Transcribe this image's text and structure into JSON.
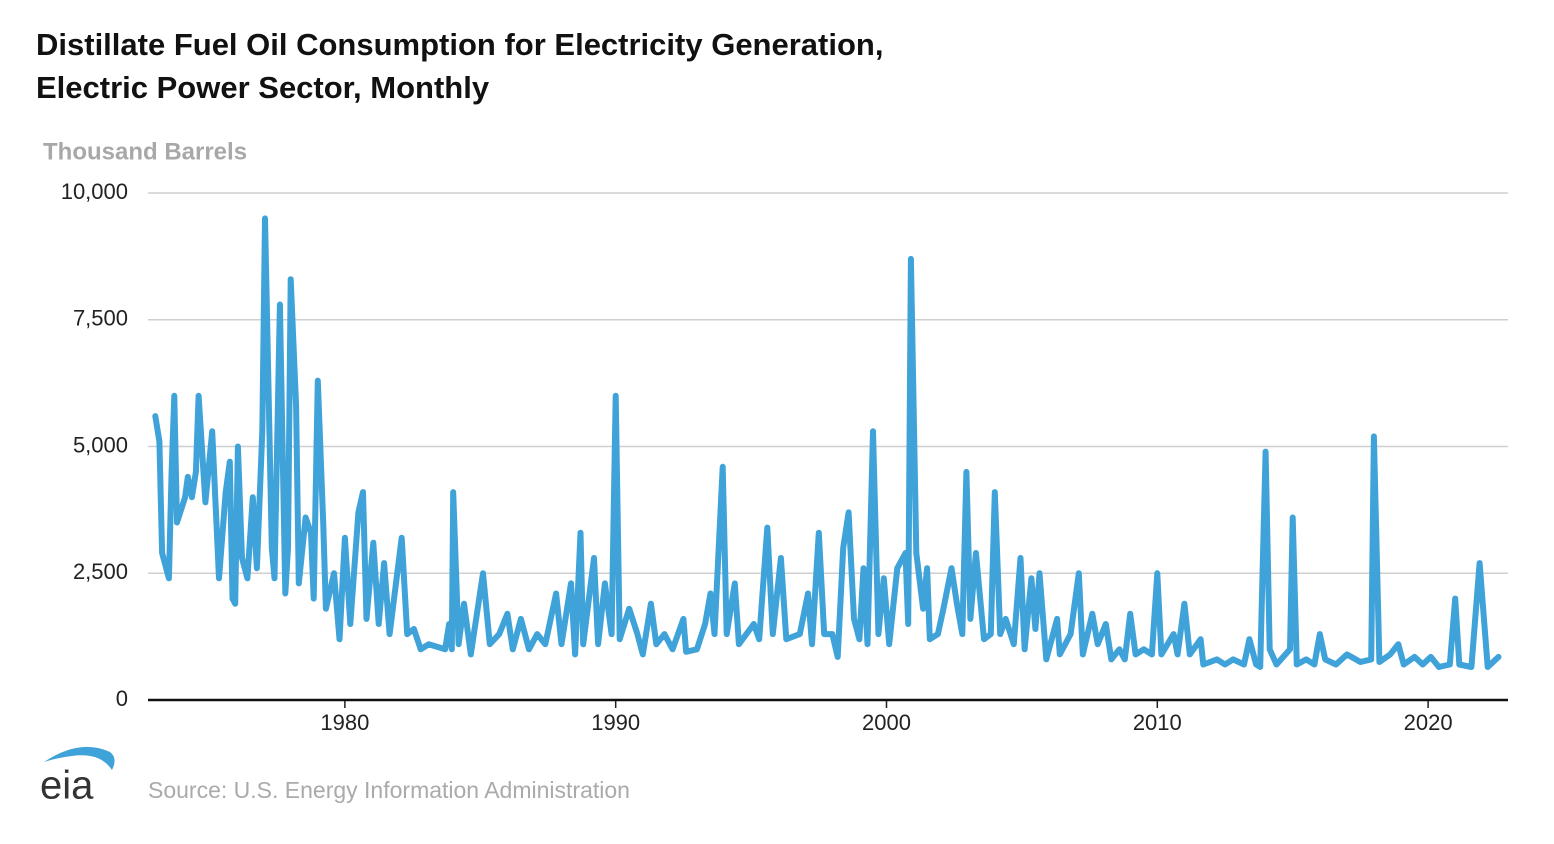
{
  "chart_data": {
    "type": "line",
    "title": [
      "Distillate Fuel Oil Consumption for Electricity Generation,",
      "Electric Power Sector, Monthly"
    ],
    "y_label": "Thousand Barrels",
    "source": "Source: U.S. Energy Information Administration",
    "color": "#3fa3d9",
    "grid": true,
    "xlim": [
      1972.73,
      2022.95
    ],
    "xticks": [
      1980,
      1990,
      2000,
      2010,
      2020
    ],
    "ylim": [
      0,
      10000
    ],
    "yticks": [
      0,
      {
        "value": 2500,
        "label": "2,500"
      },
      {
        "value": 5000,
        "label": "5,000"
      },
      {
        "value": 7500,
        "label": "7,500"
      },
      {
        "value": 10000,
        "label": "10,000"
      }
    ],
    "x": [
      1973.0,
      1973.15,
      1973.25,
      1973.5,
      1973.6,
      1973.7,
      1973.8,
      1974.1,
      1974.2,
      1974.35,
      1974.5,
      1974.6,
      1974.85,
      1975.1,
      1975.35,
      1975.6,
      1975.75,
      1975.85,
      1975.95,
      1976.05,
      1976.2,
      1976.4,
      1976.6,
      1976.75,
      1976.95,
      1977.05,
      1977.3,
      1977.4,
      1977.6,
      1977.8,
      1977.9,
      1978.0,
      1978.2,
      1978.3,
      1978.55,
      1978.75,
      1978.85,
      1979.0,
      1979.2,
      1979.3,
      1979.6,
      1979.8,
      1980.0,
      1980.2,
      1980.5,
      1980.67,
      1980.8,
      1981.05,
      1981.25,
      1981.45,
      1981.65,
      1982.1,
      1982.3,
      1982.55,
      1982.8,
      1983.1,
      1983.7,
      1983.85,
      1983.95,
      1984.0,
      1984.2,
      1984.4,
      1984.65,
      1985.1,
      1985.35,
      1985.7,
      1986.0,
      1986.2,
      1986.5,
      1986.8,
      1987.1,
      1987.4,
      1987.8,
      1988.0,
      1988.35,
      1988.5,
      1988.7,
      1988.8,
      1989.2,
      1989.35,
      1989.6,
      1989.85,
      1990.0,
      1990.15,
      1990.5,
      1990.8,
      1991.0,
      1991.3,
      1991.5,
      1991.8,
      1992.1,
      1992.5,
      1992.6,
      1993.0,
      1993.3,
      1993.5,
      1993.65,
      1993.95,
      1994.1,
      1994.4,
      1994.55,
      1995.1,
      1995.3,
      1995.6,
      1995.8,
      1996.1,
      1996.3,
      1996.8,
      1997.1,
      1997.25,
      1997.5,
      1997.7,
      1998.0,
      1998.2,
      1998.4,
      1998.6,
      1998.8,
      1999.0,
      1999.15,
      1999.3,
      1999.5,
      1999.7,
      1999.9,
      2000.1,
      2000.4,
      2000.7,
      2000.8,
      2000.9,
      2001.1,
      2001.35,
      2001.5,
      2001.6,
      2001.9,
      2002.1,
      2002.4,
      2002.6,
      2002.8,
      2002.95,
      2003.1,
      2003.3,
      2003.6,
      2003.85,
      2004.0,
      2004.2,
      2004.4,
      2004.7,
      2004.95,
      2005.1,
      2005.35,
      2005.5,
      2005.65,
      2005.9,
      2006.3,
      2006.4,
      2006.8,
      2007.1,
      2007.25,
      2007.6,
      2007.8,
      2008.1,
      2008.3,
      2008.6,
      2008.8,
      2009.0,
      2009.2,
      2009.5,
      2009.8,
      2010.0,
      2010.15,
      2010.6,
      2010.75,
      2011.0,
      2011.2,
      2011.6,
      2011.7,
      2012.2,
      2012.5,
      2012.8,
      2013.2,
      2013.4,
      2013.65,
      2013.8,
      2014.0,
      2014.15,
      2014.4,
      2014.9,
      2015.0,
      2015.15,
      2015.5,
      2015.8,
      2016.0,
      2016.2,
      2016.6,
      2017.0,
      2017.5,
      2017.9,
      2018.0,
      2018.2,
      2018.6,
      2018.9,
      2019.1,
      2019.5,
      2019.8,
      2020.1,
      2020.4,
      2020.8,
      2021.0,
      2021.15,
      2021.6,
      2021.9,
      2022.2,
      2022.6
    ],
    "values": [
      5600,
      5100,
      2900,
      2400,
      4500,
      6000,
      3500,
      4000,
      4400,
      4000,
      4500,
      6000,
      3900,
      5300,
      2400,
      4100,
      4700,
      2000,
      1900,
      5000,
      2800,
      2400,
      4000,
      2600,
      5300,
      9500,
      3000,
      2400,
      7800,
      2100,
      3000,
      8300,
      5800,
      2300,
      3600,
      3300,
      2000,
      6300,
      3500,
      1800,
      2500,
      1200,
      3200,
      1500,
      3700,
      4100,
      1600,
      3100,
      1500,
      2700,
      1300,
      3200,
      1300,
      1400,
      1000,
      1100,
      1000,
      1500,
      1000,
      4100,
      1100,
      1900,
      900,
      2500,
      1100,
      1300,
      1700,
      1000,
      1600,
      1000,
      1300,
      1100,
      2100,
      1100,
      2300,
      900,
      3300,
      1100,
      2800,
      1100,
      2300,
      1300,
      6000,
      1200,
      1800,
      1300,
      900,
      1900,
      1100,
      1300,
      1000,
      1600,
      950,
      1000,
      1500,
      2100,
      1300,
      4600,
      1300,
      2300,
      1100,
      1500,
      1200,
      3400,
      1300,
      2800,
      1200,
      1300,
      2100,
      1100,
      3300,
      1300,
      1300,
      850,
      3000,
      3700,
      1600,
      1200,
      2600,
      1100,
      5300,
      1300,
      2400,
      1100,
      2600,
      2900,
      1500,
      8700,
      2900,
      1800,
      2600,
      1200,
      1300,
      1800,
      2600,
      1900,
      1300,
      4500,
      1600,
      2900,
      1200,
      1300,
      4100,
      1300,
      1600,
      1100,
      2800,
      1000,
      2400,
      1400,
      2500,
      800,
      1600,
      900,
      1300,
      2500,
      900,
      1700,
      1100,
      1500,
      800,
      1000,
      800,
      1700,
      900,
      1000,
      900,
      2500,
      900,
      1300,
      900,
      1900,
      900,
      1200,
      700,
      800,
      700,
      800,
      700,
      1200,
      700,
      650,
      4900,
      1000,
      700,
      1000,
      3600,
      700,
      800,
      700,
      1300,
      800,
      700,
      900,
      750,
      800,
      5200,
      750,
      900,
      1100,
      700,
      850,
      700,
      850,
      650,
      700,
      2000,
      700,
      650,
      2700,
      650,
      850
    ]
  },
  "logo": "eia"
}
